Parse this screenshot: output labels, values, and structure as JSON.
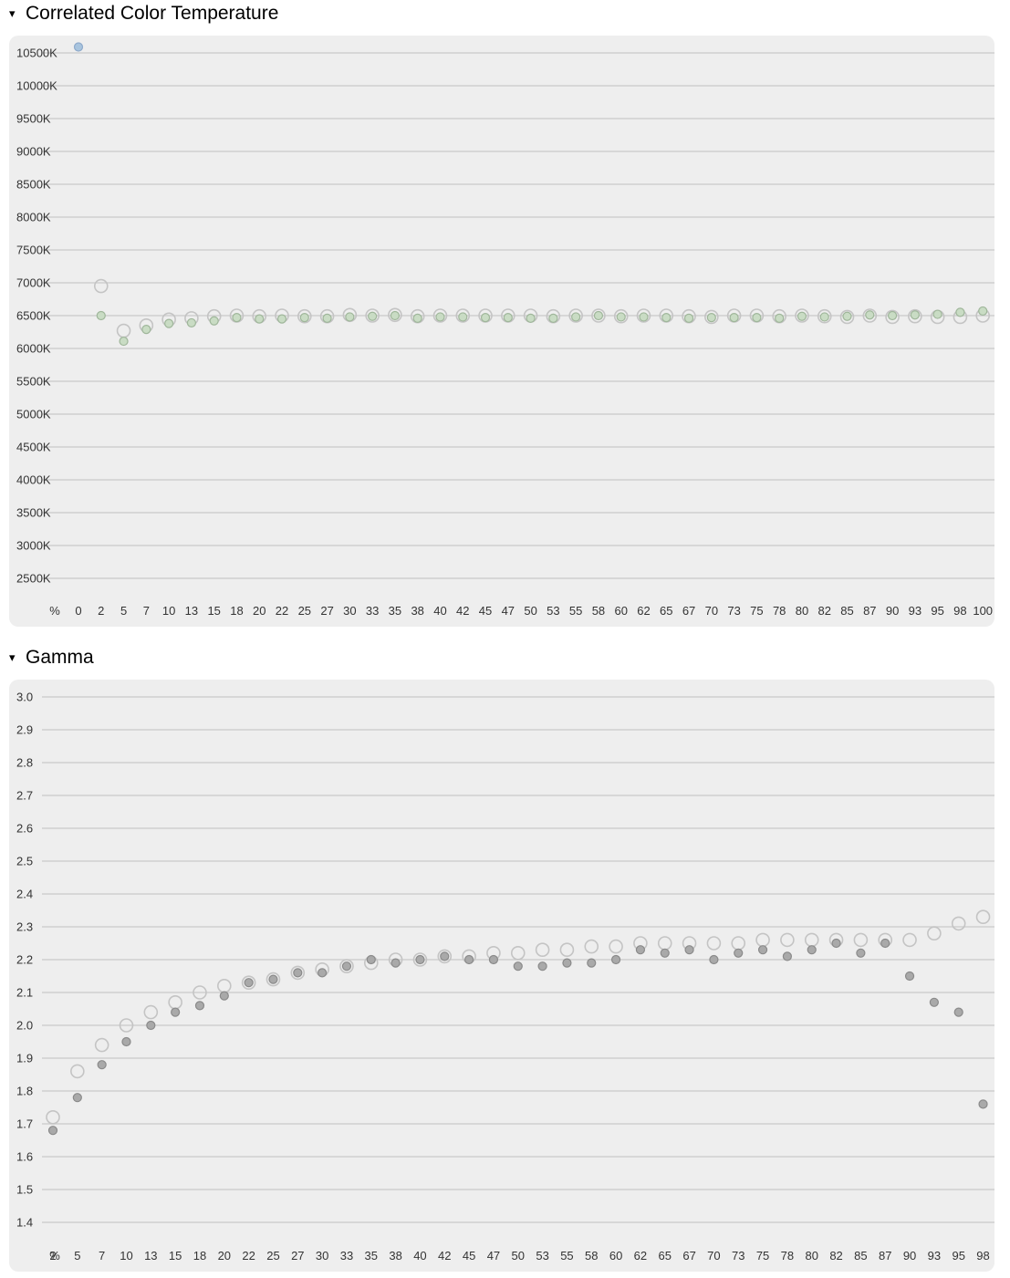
{
  "sections": [
    {
      "title": "Correlated Color Temperature",
      "toggle": "▾"
    },
    {
      "title": "Gamma",
      "toggle": "▾"
    }
  ],
  "colors": {
    "panel_bg": "#eeeeee",
    "grid": "#cfcfcf",
    "hollow_stroke": "#c4c4c4",
    "cct_fill": "#c9dcc4",
    "cct_stroke": "#9fb69a",
    "cct_outlier": "#a8c4de",
    "gamma_fill": "#a9a9a9",
    "gamma_stroke": "#8a8a8a"
  },
  "chart_data": [
    {
      "type": "scatter",
      "title": "Correlated Color Temperature",
      "x_unit_label": "%",
      "x": [
        "0",
        "2",
        "5",
        "7",
        "10",
        "13",
        "15",
        "18",
        "20",
        "22",
        "25",
        "27",
        "30",
        "33",
        "35",
        "38",
        "40",
        "42",
        "45",
        "47",
        "50",
        "53",
        "55",
        "58",
        "60",
        "62",
        "65",
        "67",
        "70",
        "73",
        "75",
        "78",
        "80",
        "82",
        "85",
        "87",
        "90",
        "93",
        "95",
        "98",
        "100"
      ],
      "y_ticks": [
        "10500K",
        "10000K",
        "9500K",
        "9000K",
        "8500K",
        "8000K",
        "7500K",
        "7000K",
        "6500K",
        "6000K",
        "5500K",
        "5000K",
        "4500K",
        "4000K",
        "3500K",
        "3000K",
        "2500K"
      ],
      "ylim": [
        2250,
        10750
      ],
      "grid": true,
      "series": [
        {
          "style": "hollow",
          "values": [
            null,
            6950,
            6270,
            6350,
            6440,
            6460,
            6490,
            6500,
            6490,
            6500,
            6490,
            6490,
            6510,
            6500,
            6510,
            6490,
            6500,
            6500,
            6500,
            6500,
            6500,
            6490,
            6500,
            6500,
            6490,
            6500,
            6500,
            6490,
            6480,
            6500,
            6500,
            6490,
            6500,
            6490,
            6480,
            6500,
            6480,
            6490,
            6480,
            6480,
            6500
          ]
        },
        {
          "style": "filled",
          "values": [
            10590,
            6500,
            6110,
            6290,
            6380,
            6390,
            6420,
            6470,
            6450,
            6450,
            6470,
            6460,
            6480,
            6490,
            6500,
            6460,
            6480,
            6480,
            6470,
            6470,
            6460,
            6460,
            6480,
            6500,
            6480,
            6480,
            6470,
            6460,
            6470,
            6470,
            6470,
            6460,
            6490,
            6480,
            6490,
            6510,
            6500,
            6510,
            6520,
            6550,
            6570
          ]
        }
      ]
    },
    {
      "type": "scatter",
      "title": "Gamma",
      "x_unit_label": "%",
      "x": [
        "2",
        "5",
        "7",
        "10",
        "13",
        "15",
        "18",
        "20",
        "22",
        "25",
        "27",
        "30",
        "33",
        "35",
        "38",
        "40",
        "42",
        "45",
        "47",
        "50",
        "53",
        "55",
        "58",
        "60",
        "62",
        "65",
        "67",
        "70",
        "73",
        "75",
        "78",
        "80",
        "82",
        "85",
        "87",
        "90",
        "93",
        "95",
        "98"
      ],
      "y_ticks": [
        "3.0",
        "2.9",
        "2.8",
        "2.7",
        "2.6",
        "2.5",
        "2.4",
        "2.3",
        "2.2",
        "2.1",
        "2.0",
        "1.9",
        "1.8",
        "1.7",
        "1.6",
        "1.5",
        "1.4"
      ],
      "ylim": [
        1.35,
        3.05
      ],
      "grid": true,
      "series": [
        {
          "style": "hollow",
          "values": [
            1.72,
            1.86,
            1.94,
            2.0,
            2.04,
            2.07,
            2.1,
            2.12,
            2.13,
            2.14,
            2.16,
            2.17,
            2.18,
            2.19,
            2.2,
            2.2,
            2.21,
            2.21,
            2.22,
            2.22,
            2.23,
            2.23,
            2.24,
            2.24,
            2.25,
            2.25,
            2.25,
            2.25,
            2.25,
            2.26,
            2.26,
            2.26,
            2.26,
            2.26,
            2.26,
            2.26,
            2.28,
            2.31,
            2.33
          ]
        },
        {
          "style": "filled",
          "values": [
            1.68,
            1.78,
            1.88,
            1.95,
            2.0,
            2.04,
            2.06,
            2.09,
            2.13,
            2.14,
            2.16,
            2.16,
            2.18,
            2.2,
            2.19,
            2.2,
            2.21,
            2.2,
            2.2,
            2.18,
            2.18,
            2.19,
            2.19,
            2.2,
            2.23,
            2.22,
            2.23,
            2.2,
            2.22,
            2.23,
            2.21,
            2.23,
            2.25,
            2.22,
            2.25,
            2.15,
            2.07,
            2.04,
            1.76
          ]
        }
      ]
    }
  ]
}
